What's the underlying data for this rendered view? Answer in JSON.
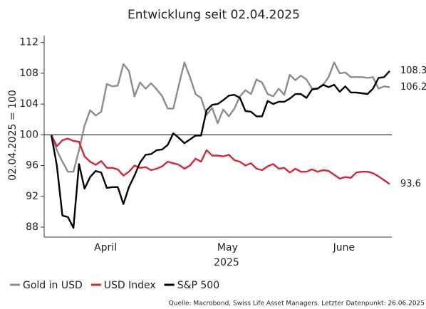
{
  "chart_data": {
    "type": "line",
    "title": "Entwicklung seit 02.04.2025",
    "ylabel": "02.04.2025 = 100",
    "xlabel": "2025",
    "source": "Quelle: Macrobond, Swiss Life Asset Managers. Letzter Datenpunkt: 26.06.2025",
    "categories": [
      null,
      null,
      null,
      null,
      null,
      null,
      null,
      null,
      null,
      "April",
      null,
      null,
      null,
      null,
      null,
      null,
      null,
      null,
      null,
      null,
      null,
      null,
      null,
      null,
      null,
      null,
      null,
      null,
      null,
      null,
      null,
      "May",
      null,
      null,
      null,
      null,
      null,
      null,
      null,
      null,
      null,
      null,
      null,
      null,
      null,
      null,
      null,
      null,
      null,
      null,
      null,
      null,
      "June",
      null,
      null,
      null,
      null,
      null,
      null,
      null,
      null,
      null
    ],
    "ylim": [
      86.7,
      112.9
    ],
    "yticks": [
      88,
      92,
      96,
      100,
      104,
      108,
      112
    ],
    "hline": 100,
    "legend": "bottom",
    "series": [
      {
        "name": "Gold in USD",
        "color": "#8c8c8c",
        "values": [
          100,
          98,
          96.5,
          95.2,
          95.2,
          98,
          101.2,
          103.2,
          102.5,
          103,
          106.6,
          106.3,
          106.4,
          109.2,
          108.3,
          105,
          106.8,
          106,
          106.7,
          105.9,
          105,
          103.4,
          103.4,
          106.5,
          109.4,
          107.5,
          105.3,
          104.8,
          102.6,
          103.5,
          101.5,
          103.3,
          102.4,
          103.4,
          105,
          105.8,
          105.3,
          107.2,
          106.8,
          105.3,
          105,
          106,
          105.2,
          107.8,
          107.1,
          107.7,
          107.2,
          106,
          106,
          106.5,
          107.5,
          109.4,
          108,
          108.1,
          107.5,
          107.5,
          107.5,
          107.4,
          107.5,
          106,
          106.3,
          106.2
        ]
      },
      {
        "name": "USD Index",
        "color": "#d0283a",
        "values": [
          100,
          98.5,
          99.3,
          99.5,
          99.2,
          99.1,
          97.2,
          96.5,
          96.1,
          96.6,
          95.7,
          95.7,
          95.5,
          94.7,
          95.2,
          96,
          95.7,
          95.8,
          95.4,
          95.6,
          95.9,
          96.5,
          96.3,
          96.1,
          95.6,
          96,
          96.9,
          96.5,
          98,
          97.3,
          97.3,
          97.2,
          97.4,
          96.7,
          96.5,
          96,
          96.3,
          95.6,
          95.4,
          95.9,
          96.2,
          95.6,
          95.7,
          95.1,
          95.6,
          95.2,
          95.2,
          95.5,
          95.2,
          95.4,
          95.3,
          94.8,
          94.3,
          94.5,
          94.4,
          95.1,
          95.2,
          95.2,
          95,
          94.6,
          94.1,
          93.6
        ]
      },
      {
        "name": "S&P 500",
        "color": "#000000",
        "values": [
          100,
          96,
          89.5,
          89.3,
          87.9,
          96.2,
          93,
          94.5,
          95.3,
          95.1,
          93.1,
          93.2,
          93.2,
          91,
          93.2,
          94.7,
          96.4,
          97.4,
          97.5,
          98,
          98.1,
          98.7,
          100.2,
          99.6,
          98.9,
          99.4,
          99.9,
          99.9,
          103.2,
          103.9,
          104,
          104.5,
          105.1,
          105.2,
          104.8,
          103.1,
          103,
          102.4,
          102.4,
          104.4,
          104,
          104.3,
          104.3,
          104.7,
          105.3,
          105.3,
          104.8,
          105.9,
          106,
          106.5,
          106.2,
          106.5,
          105.6,
          106.3,
          105.5,
          105.5,
          105.4,
          105.3,
          106,
          107.4,
          107.5,
          108.3
        ]
      }
    ]
  }
}
